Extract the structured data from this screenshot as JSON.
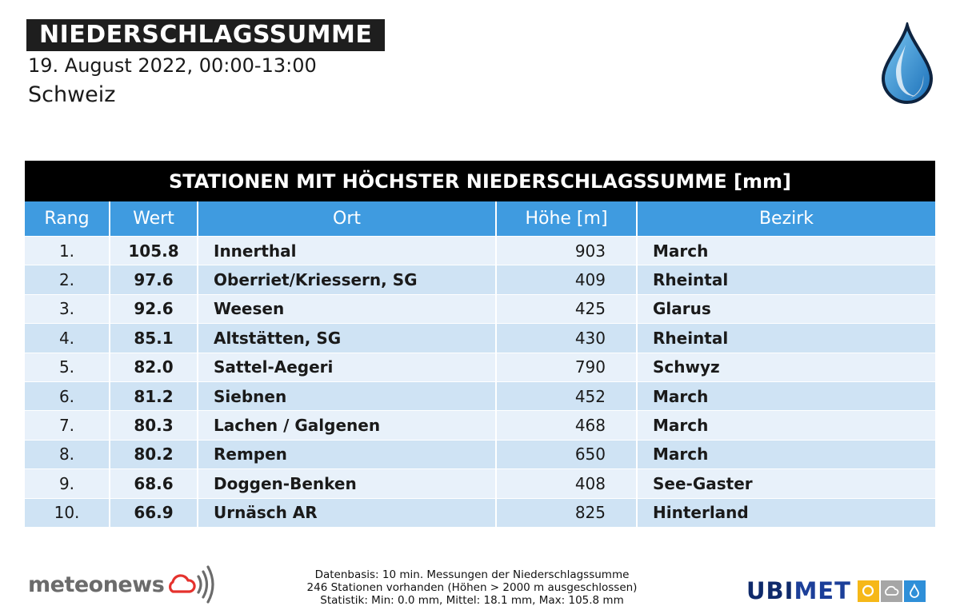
{
  "header": {
    "title": "NIEDERSCHLAGSSUMME",
    "subtitle": "19. August 2022, 00:00-13:00",
    "region": "Schweiz"
  },
  "table": {
    "title": "STATIONEN MIT HÖCHSTER NIEDERSCHLAGSSUMME [mm]",
    "columns": [
      "Rang",
      "Wert",
      "Ort",
      "Höhe [m]",
      "Bezirk"
    ],
    "rows": [
      [
        "1.",
        "105.8",
        "Innerthal",
        "903",
        "March"
      ],
      [
        "2.",
        "97.6",
        "Oberriet/Kriessern, SG",
        "409",
        "Rheintal"
      ],
      [
        "3.",
        "92.6",
        "Weesen",
        "425",
        "Glarus"
      ],
      [
        "4.",
        "85.1",
        "Altstätten, SG",
        "430",
        "Rheintal"
      ],
      [
        "5.",
        "82.0",
        "Sattel-Aegeri",
        "790",
        "Schwyz"
      ],
      [
        "6.",
        "81.2",
        "Siebnen",
        "452",
        "March"
      ],
      [
        "7.",
        "80.3",
        "Lachen / Galgenen",
        "468",
        "March"
      ],
      [
        "8.",
        "80.2",
        "Rempen",
        "650",
        "March"
      ],
      [
        "9.",
        "68.6",
        "Doggen-Benken",
        "408",
        "See-Gaster"
      ],
      [
        "10.",
        "66.9",
        "Urnäsch AR",
        "825",
        "Hinterland"
      ]
    ]
  },
  "footer": {
    "line1": "Datenbasis: 10 min. Messungen der Niederschlagssumme",
    "line2": "246 Stationen vorhanden (Höhen > 2000 m ausgeschlossen)",
    "line3": "Statistik: Min: 0.0 mm, Mittel: 18.1 mm, Max: 105.8 mm"
  },
  "logos": {
    "meteonews": "meteonews",
    "ubimet_part1": "UBI",
    "ubimet_part2": "MET"
  },
  "icons": {
    "drop": "water-drop-icon",
    "cloud": "cloud-icon",
    "signal": "signal-waves-icon",
    "sun": "sun-icon",
    "rain": "raindrop-icon"
  },
  "colors": {
    "header_blue": "#3f9be0",
    "row_light": "#e8f1fa",
    "row_dark": "#cfe3f4",
    "brand_red": "#e5322d",
    "ubimet_navy": "#0f2a6b",
    "ubimet_yellow": "#f6b818",
    "ubimet_grey": "#a6a6a6",
    "ubimet_blue": "#2f8fd8"
  }
}
